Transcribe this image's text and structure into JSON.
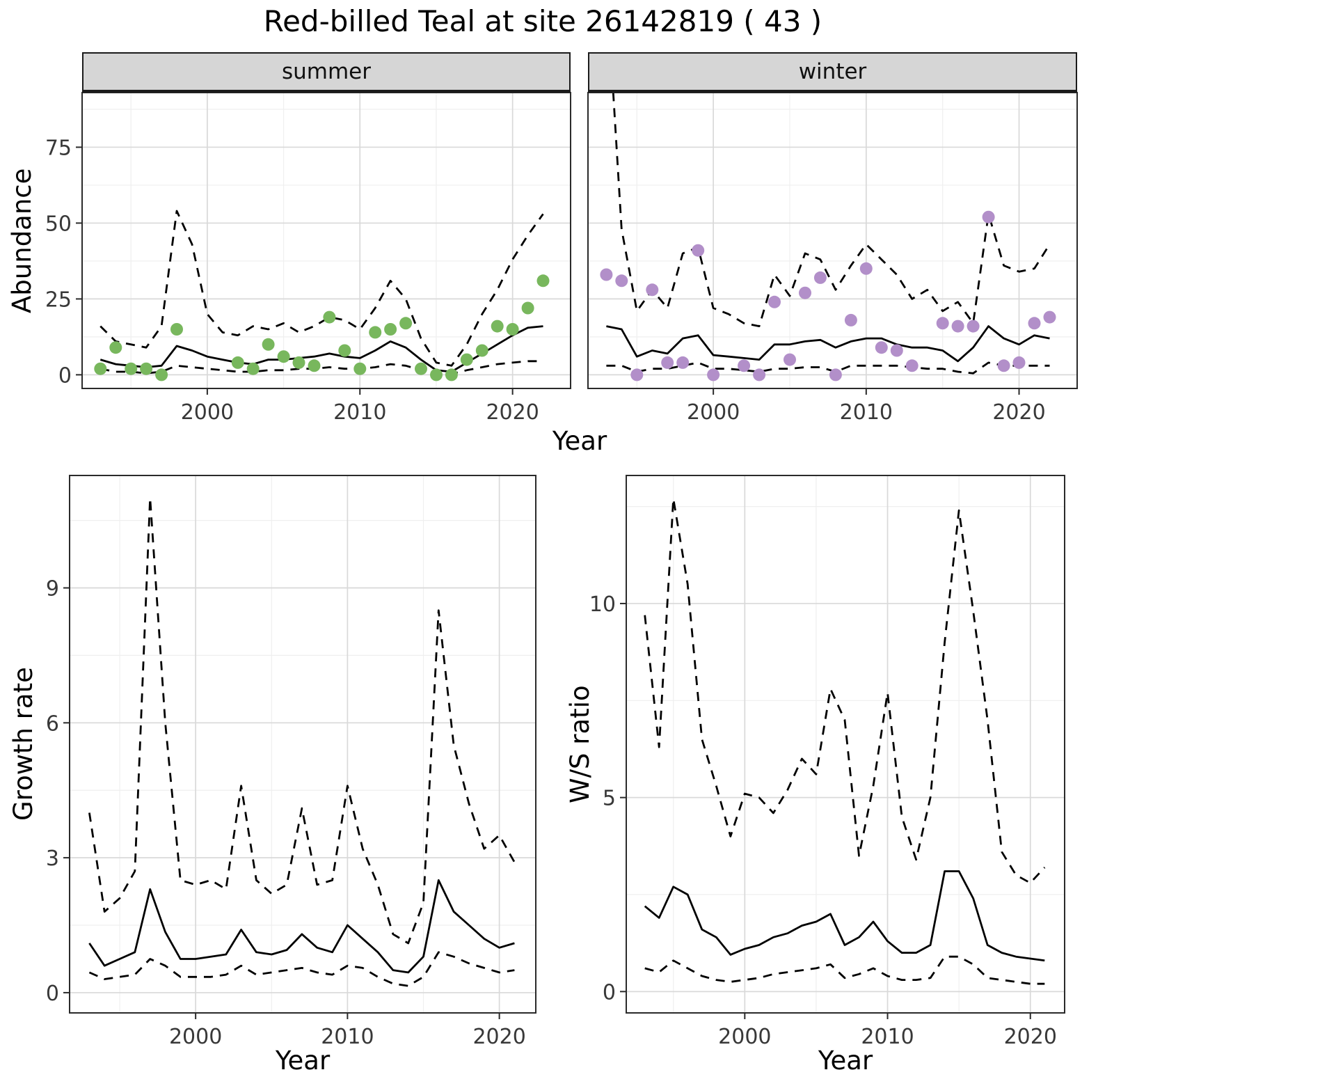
{
  "title": "Red-billed Teal at site 26142819 ( 43 )",
  "facets": {
    "summer": "summer",
    "winter": "winter"
  },
  "axis_labels": {
    "abundance": "Abundance",
    "year": "Year",
    "growth_rate": "Growth rate",
    "ws_ratio": "W/S ratio"
  },
  "colors": {
    "summer_points": "#78b75d",
    "winter_points": "#b28fc9",
    "line": "#000000",
    "grid_major": "#d9d9d9",
    "grid_minor": "#efefef",
    "strip_bg": "#d6d6d6",
    "panel_border": "#2a2a2a"
  },
  "chart_data": [
    {
      "id": "summer",
      "type": "line",
      "facet": "summer",
      "xlabel": "Year",
      "ylabel": "Abundance",
      "xlim": [
        1991.8,
        2023.8
      ],
      "ylim": [
        -4.5,
        93
      ],
      "xticks": [
        2000,
        2010,
        2020
      ],
      "yticks": [
        0,
        25,
        50,
        75
      ],
      "x": [
        1993,
        1994,
        1995,
        1996,
        1997,
        1998,
        1999,
        2000,
        2001,
        2002,
        2003,
        2004,
        2005,
        2006,
        2007,
        2008,
        2009,
        2010,
        2011,
        2012,
        2013,
        2014,
        2015,
        2016,
        2017,
        2018,
        2019,
        2020,
        2021,
        2022
      ],
      "series": [
        {
          "name": "fit",
          "style": "solid",
          "color": "#000000",
          "values": [
            5,
            3.5,
            3,
            2.5,
            3,
            9.5,
            8,
            6,
            5,
            4,
            3.5,
            5,
            5,
            5.5,
            6,
            7,
            6,
            5.5,
            8,
            11,
            9,
            5,
            1.5,
            1,
            4,
            7,
            10,
            13,
            15.5,
            16
          ]
        },
        {
          "name": "upper-ci",
          "style": "dashed",
          "color": "#000000",
          "values": [
            16,
            11,
            10,
            9,
            16,
            54,
            43,
            20,
            14,
            13,
            16,
            15,
            17,
            14,
            16,
            19,
            18,
            15,
            22,
            31,
            25,
            12,
            4,
            3,
            10,
            20,
            28,
            38,
            46,
            53
          ]
        },
        {
          "name": "lower-ci",
          "style": "dashed",
          "color": "#000000",
          "values": [
            2,
            1,
            1,
            0.5,
            1,
            3,
            2.5,
            2,
            1.5,
            1,
            1,
            1.5,
            1.5,
            2,
            2,
            2.5,
            2,
            2,
            2.5,
            3.5,
            3,
            1.5,
            0.5,
            0.3,
            1.5,
            2.5,
            3.5,
            4,
            4.5,
            4.5
          ]
        },
        {
          "name": "observed",
          "style": "points",
          "color": "#78b75d",
          "values": [
            2,
            9,
            2,
            2,
            0,
            15,
            null,
            null,
            null,
            4,
            2,
            10,
            6,
            4,
            3,
            19,
            8,
            2,
            14,
            15,
            17,
            2,
            0,
            0,
            5,
            8,
            16,
            15,
            22,
            31
          ]
        }
      ]
    },
    {
      "id": "winter",
      "type": "line",
      "facet": "winter",
      "xlabel": "Year",
      "ylabel": "Abundance",
      "xlim": [
        1991.8,
        2023.8
      ],
      "ylim": [
        -4.5,
        93
      ],
      "xticks": [
        2000,
        2010,
        2020
      ],
      "yticks": [
        0,
        25,
        50,
        75
      ],
      "x": [
        1993,
        1994,
        1995,
        1996,
        1997,
        1998,
        1999,
        2000,
        2001,
        2002,
        2003,
        2004,
        2005,
        2006,
        2007,
        2008,
        2009,
        2010,
        2011,
        2012,
        2013,
        2014,
        2015,
        2016,
        2017,
        2018,
        2019,
        2020,
        2021,
        2022
      ],
      "series": [
        {
          "name": "fit",
          "style": "solid",
          "color": "#000000",
          "values": [
            16,
            15,
            6,
            8,
            7,
            12,
            13,
            6.5,
            6,
            5.5,
            5,
            10,
            10,
            11,
            11.5,
            9,
            11,
            12,
            12,
            10,
            9,
            9,
            8,
            4.5,
            9,
            16,
            12,
            10,
            13,
            12
          ]
        },
        {
          "name": "upper-ci",
          "style": "dashed",
          "color": "#000000",
          "values": [
            130,
            48,
            21,
            28,
            22,
            40,
            42,
            22,
            20,
            17,
            16,
            33,
            26,
            40,
            38,
            28,
            36,
            43,
            38,
            33,
            25,
            28,
            21,
            24,
            17,
            53,
            36,
            34,
            35,
            43
          ]
        },
        {
          "name": "lower-ci",
          "style": "dashed",
          "color": "#000000",
          "values": [
            3,
            3,
            1,
            2,
            2,
            3,
            4,
            2,
            2,
            1.5,
            1,
            2,
            2,
            2.5,
            2.5,
            1,
            3,
            3,
            3,
            3,
            2.5,
            2,
            2,
            1,
            0.5,
            4,
            3,
            3,
            3,
            3
          ]
        },
        {
          "name": "observed",
          "style": "points",
          "color": "#b28fc9",
          "values": [
            33,
            31,
            0,
            28,
            4,
            4,
            41,
            0,
            null,
            3,
            0,
            24,
            5,
            27,
            32,
            0,
            18,
            35,
            9,
            8,
            3,
            null,
            17,
            16,
            16,
            52,
            3,
            4,
            17,
            19
          ]
        }
      ]
    },
    {
      "id": "growth",
      "type": "line",
      "facet": "",
      "xlabel": "Year",
      "ylabel": "Growth rate",
      "xlim": [
        1991.7,
        2022.4
      ],
      "ylim": [
        -0.45,
        11.5
      ],
      "xticks": [
        2000,
        2010,
        2020
      ],
      "yticks": [
        0,
        3,
        6,
        9
      ],
      "x": [
        1993,
        1994,
        1995,
        1996,
        1997,
        1998,
        1999,
        2000,
        2001,
        2002,
        2003,
        2004,
        2005,
        2006,
        2007,
        2008,
        2009,
        2010,
        2011,
        2012,
        2013,
        2014,
        2015,
        2016,
        2017,
        2018,
        2019,
        2020,
        2021
      ],
      "series": [
        {
          "name": "fit",
          "style": "solid",
          "color": "#000000",
          "values": [
            1.1,
            0.6,
            0.75,
            0.9,
            2.3,
            1.35,
            0.75,
            0.75,
            0.8,
            0.85,
            1.4,
            0.9,
            0.85,
            0.95,
            1.3,
            1.0,
            0.9,
            1.5,
            1.2,
            0.9,
            0.5,
            0.45,
            0.8,
            2.5,
            1.8,
            1.5,
            1.2,
            1.0,
            1.1
          ]
        },
        {
          "name": "upper-ci",
          "style": "dashed",
          "color": "#000000",
          "values": [
            4.0,
            1.8,
            2.1,
            2.7,
            11.0,
            6.0,
            2.5,
            2.4,
            2.5,
            2.3,
            4.6,
            2.5,
            2.2,
            2.4,
            4.1,
            2.4,
            2.5,
            4.6,
            3.2,
            2.4,
            1.3,
            1.1,
            2.0,
            8.5,
            5.5,
            4.2,
            3.2,
            3.5,
            2.9
          ]
        },
        {
          "name": "lower-ci",
          "style": "dashed",
          "color": "#000000",
          "values": [
            0.45,
            0.3,
            0.35,
            0.4,
            0.75,
            0.6,
            0.35,
            0.35,
            0.35,
            0.4,
            0.6,
            0.4,
            0.45,
            0.5,
            0.55,
            0.45,
            0.4,
            0.6,
            0.55,
            0.35,
            0.2,
            0.15,
            0.35,
            0.9,
            0.8,
            0.65,
            0.55,
            0.45,
            0.5
          ]
        }
      ]
    },
    {
      "id": "ws",
      "type": "line",
      "facet": "",
      "xlabel": "Year",
      "ylabel": "W/S ratio",
      "xlim": [
        1991.7,
        2022.4
      ],
      "ylim": [
        -0.55,
        13.3
      ],
      "xticks": [
        2000,
        2010,
        2020
      ],
      "yticks": [
        0,
        5,
        10
      ],
      "x": [
        1993,
        1994,
        1995,
        1996,
        1997,
        1998,
        1999,
        2000,
        2001,
        2002,
        2003,
        2004,
        2005,
        2006,
        2007,
        2008,
        2009,
        2010,
        2011,
        2012,
        2013,
        2014,
        2015,
        2016,
        2017,
        2018,
        2019,
        2020,
        2021
      ],
      "series": [
        {
          "name": "fit",
          "style": "solid",
          "color": "#000000",
          "values": [
            2.2,
            1.9,
            2.7,
            2.5,
            1.6,
            1.4,
            0.95,
            1.1,
            1.2,
            1.4,
            1.5,
            1.7,
            1.8,
            2.0,
            1.2,
            1.4,
            1.8,
            1.3,
            1.0,
            1.0,
            1.2,
            3.1,
            3.1,
            2.4,
            1.2,
            1.0,
            0.9,
            0.85,
            0.8
          ]
        },
        {
          "name": "upper-ci",
          "style": "dashed",
          "color": "#000000",
          "values": [
            9.7,
            6.3,
            12.7,
            10.5,
            6.5,
            5.3,
            4.0,
            5.1,
            5.0,
            4.6,
            5.2,
            6.0,
            5.6,
            7.8,
            7.0,
            3.5,
            5.3,
            7.7,
            4.5,
            3.4,
            5.0,
            9.0,
            12.4,
            9.8,
            7.0,
            3.6,
            3.0,
            2.8,
            3.2
          ]
        },
        {
          "name": "lower-ci",
          "style": "dashed",
          "color": "#000000",
          "values": [
            0.6,
            0.5,
            0.8,
            0.6,
            0.4,
            0.3,
            0.25,
            0.3,
            0.35,
            0.45,
            0.5,
            0.55,
            0.6,
            0.7,
            0.35,
            0.45,
            0.6,
            0.4,
            0.3,
            0.3,
            0.35,
            0.9,
            0.9,
            0.7,
            0.35,
            0.3,
            0.25,
            0.2,
            0.2
          ]
        }
      ]
    }
  ]
}
